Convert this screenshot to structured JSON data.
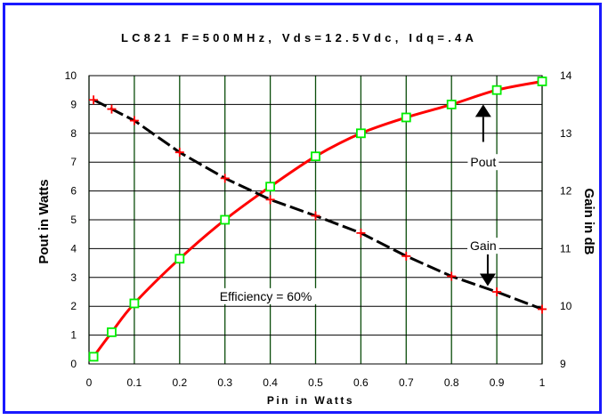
{
  "chart_data": {
    "type": "line",
    "title": "LC821 F=500MHz, Vds=12.5Vdc, Idq=.4A",
    "xlabel": "Pin in Watts",
    "ylabel": "Pout in Watts",
    "y2label": "Gain in dB",
    "xlim": [
      0,
      1
    ],
    "ylim": [
      0,
      10
    ],
    "y2lim": [
      9,
      14
    ],
    "grid": true,
    "x_ticks": [
      "0",
      "0.1",
      "0.2",
      "0.3",
      "0.4",
      "0.5",
      "0.6",
      "0.7",
      "0.8",
      "0.9",
      "1"
    ],
    "y_ticks": [
      "0",
      "1",
      "2",
      "3",
      "4",
      "5",
      "6",
      "7",
      "8",
      "9",
      "10"
    ],
    "y2_ticks": [
      "9",
      "10",
      "11",
      "12",
      "13",
      "14"
    ],
    "series": [
      {
        "name": "Pout",
        "axis": "left",
        "color": "#ff0000",
        "marker": "square",
        "marker_color": "#00ee00",
        "points": [
          [
            0.01,
            0.25
          ],
          [
            0.05,
            1.1
          ],
          [
            0.1,
            2.1
          ],
          [
            0.2,
            3.65
          ],
          [
            0.3,
            5.0
          ],
          [
            0.4,
            6.15
          ],
          [
            0.5,
            7.2
          ],
          [
            0.6,
            8.0
          ],
          [
            0.7,
            8.55
          ],
          [
            0.8,
            9.0
          ],
          [
            0.9,
            9.5
          ],
          [
            1.0,
            9.8
          ]
        ]
      },
      {
        "name": "Gain",
        "axis": "right",
        "color": "#000000",
        "dash": true,
        "marker": "plus",
        "marker_color": "#ff0000",
        "points": [
          [
            0.01,
            13.58
          ],
          [
            0.05,
            13.42
          ],
          [
            0.1,
            13.22
          ],
          [
            0.2,
            12.67
          ],
          [
            0.3,
            12.22
          ],
          [
            0.4,
            11.85
          ],
          [
            0.5,
            11.57
          ],
          [
            0.6,
            11.27
          ],
          [
            0.7,
            10.87
          ],
          [
            0.8,
            10.52
          ],
          [
            0.9,
            10.25
          ],
          [
            1.0,
            9.95
          ]
        ]
      }
    ],
    "annotations": [
      {
        "text": "Pout",
        "x": 0.87,
        "y": 7.0
      },
      {
        "text": "Gain",
        "x": 0.87,
        "y": 4.1
      },
      {
        "text": "Efficiency = 60%",
        "x": 0.39,
        "y": 2.35
      }
    ],
    "arrows": [
      {
        "name": "pout-arrow",
        "x": 0.87,
        "y_from": 7.7,
        "y_to": 9.0
      },
      {
        "name": "gain-arrow",
        "x": 0.88,
        "y_from": 3.8,
        "y_to": 2.7
      }
    ]
  }
}
